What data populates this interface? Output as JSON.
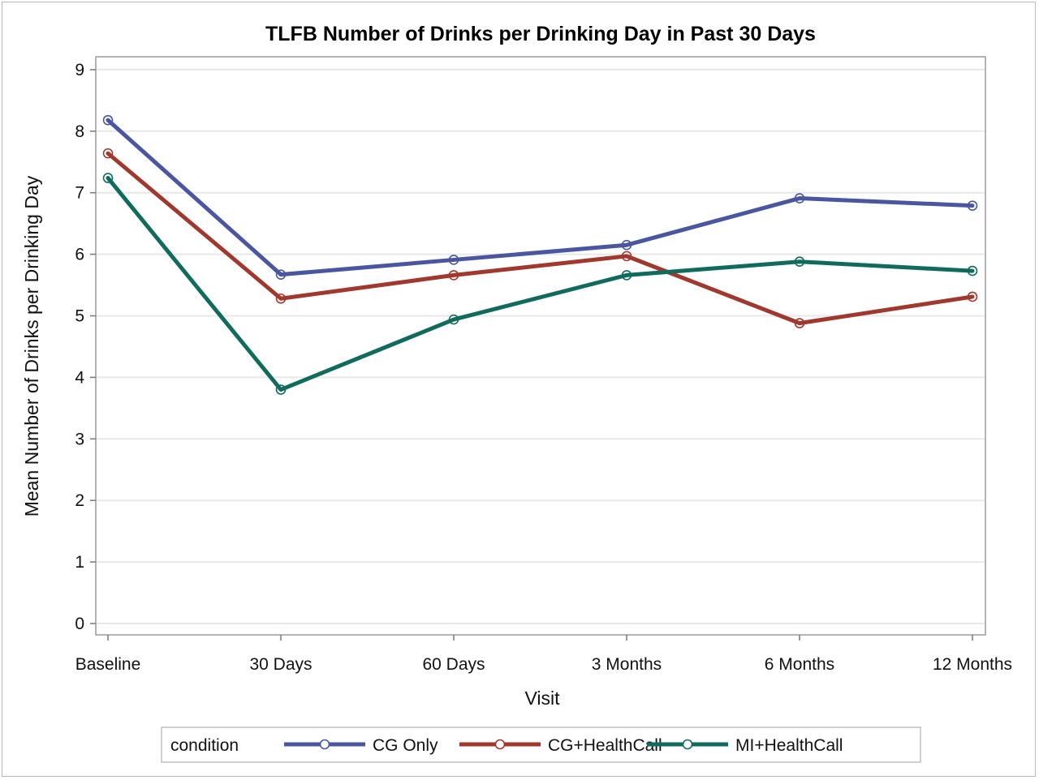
{
  "chart_data": {
    "type": "line",
    "title": "TLFB Number of Drinks per Drinking Day in Past 30 Days",
    "xlabel": "Visit",
    "ylabel": "Mean Number of Drinks per Drinking Day",
    "categories": [
      "Baseline",
      "30 Days",
      "60 Days",
      "3 Months",
      "6 Months",
      "12 Months"
    ],
    "ylim": [
      0,
      9
    ],
    "yticks": [
      0,
      1,
      2,
      3,
      4,
      5,
      6,
      7,
      8,
      9
    ],
    "grid": true,
    "legend": {
      "placement": "bottom",
      "title": "condition"
    },
    "series": [
      {
        "name": "CG Only",
        "color": "#4a56a0",
        "values": [
          8.18,
          5.67,
          5.91,
          6.15,
          6.91,
          6.79
        ]
      },
      {
        "name": "CG+HealthCall",
        "color": "#a0382e",
        "values": [
          7.64,
          5.28,
          5.66,
          5.97,
          4.88,
          5.31
        ]
      },
      {
        "name": "MI+HealthCall",
        "color": "#116b5d",
        "values": [
          7.24,
          3.8,
          4.94,
          5.66,
          5.88,
          5.73
        ]
      }
    ]
  }
}
